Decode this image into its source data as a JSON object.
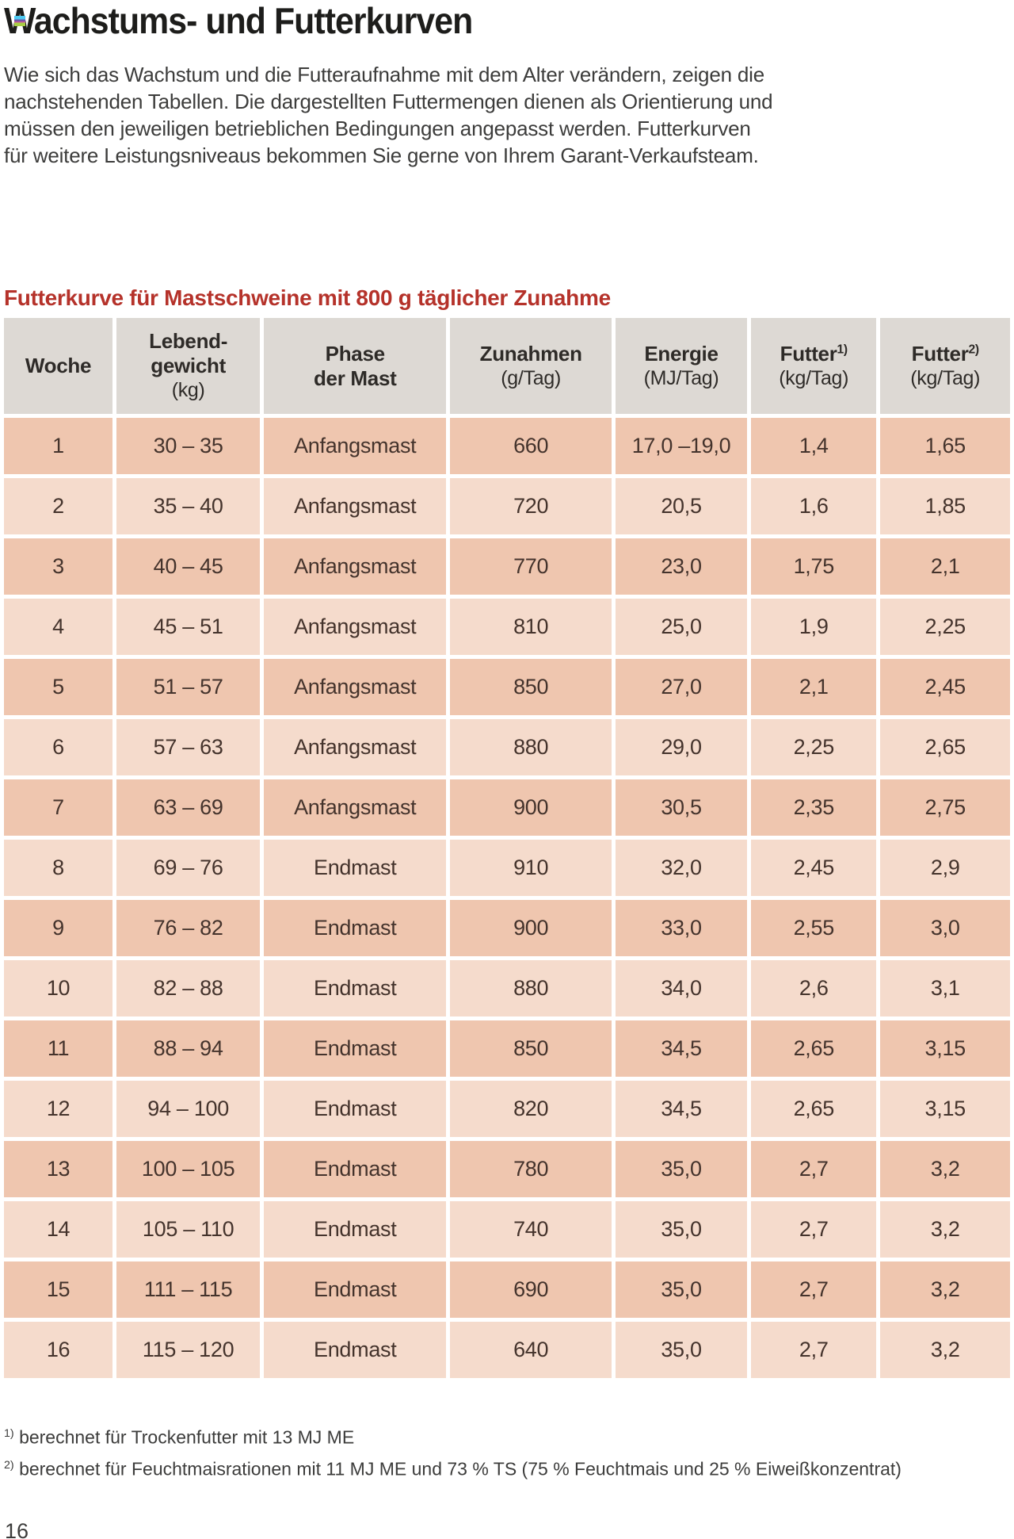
{
  "page": {
    "title": "Wachstums- und Futterkurven",
    "intro_lines": [
      "Wie sich das Wachstum und die Futteraufnahme mit dem Alter verändern, zeigen die",
      "nachstehenden Tabellen. Die dargestellten Futtermengen dienen als Orientierung und",
      "müssen den jeweiligen betrieblichen Bedingungen angepasst werden. Futterkurven",
      "für weitere Leistungsniveaus bekommen Sie gerne von Ihrem Garant-Verkaufsteam."
    ],
    "section_title": "Futterkurve für Mastschweine mit 800 g täglicher Zunahme",
    "page_number": "16"
  },
  "colors": {
    "accent_red": "#b5322a",
    "title_black": "#1d1d1b",
    "header_cell_bg": "#ddd9d4",
    "row_dark_bg": "#efc6af",
    "row_light_bg": "#f5dbcc",
    "cell_text": "#44332c"
  },
  "table": {
    "headers": [
      {
        "l1": "Woche"
      },
      {
        "l1": "Lebend-",
        "l2": "gewicht",
        "unit": "(kg)"
      },
      {
        "l1": "Phase",
        "l2": "der Mast"
      },
      {
        "l1": "Zunahmen",
        "unit": "(g/Tag)"
      },
      {
        "l1": "Energie",
        "unit": "(MJ/Tag)"
      },
      {
        "l1": "Futter",
        "sup": "1)",
        "unit": "(kg/Tag)"
      },
      {
        "l1": "Futter",
        "sup": "2)",
        "unit": "(kg/Tag)"
      }
    ],
    "rows": [
      [
        "1",
        "30 – 35",
        "Anfangsmast",
        "660",
        "17,0 –19,0",
        "1,4",
        "1,65"
      ],
      [
        "2",
        "35 – 40",
        "Anfangsmast",
        "720",
        "20,5",
        "1,6",
        "1,85"
      ],
      [
        "3",
        "40 – 45",
        "Anfangsmast",
        "770",
        "23,0",
        "1,75",
        "2,1"
      ],
      [
        "4",
        "45 – 51",
        "Anfangsmast",
        "810",
        "25,0",
        "1,9",
        "2,25"
      ],
      [
        "5",
        "51 – 57",
        "Anfangsmast",
        "850",
        "27,0",
        "2,1",
        "2,45"
      ],
      [
        "6",
        "57 – 63",
        "Anfangsmast",
        "880",
        "29,0",
        "2,25",
        "2,65"
      ],
      [
        "7",
        "63 – 69",
        "Anfangsmast",
        "900",
        "30,5",
        "2,35",
        "2,75"
      ],
      [
        "8",
        "69 – 76",
        "Endmast",
        "910",
        "32,0",
        "2,45",
        "2,9"
      ],
      [
        "9",
        "76 – 82",
        "Endmast",
        "900",
        "33,0",
        "2,55",
        "3,0"
      ],
      [
        "10",
        "82 – 88",
        "Endmast",
        "880",
        "34,0",
        "2,6",
        "3,1"
      ],
      [
        "11",
        "88 – 94",
        "Endmast",
        "850",
        "34,5",
        "2,65",
        "3,15"
      ],
      [
        "12",
        "94 – 100",
        "Endmast",
        "820",
        "34,5",
        "2,65",
        "3,15"
      ],
      [
        "13",
        "100 – 105",
        "Endmast",
        "780",
        "35,0",
        "2,7",
        "3,2"
      ],
      [
        "14",
        "105 – 110",
        "Endmast",
        "740",
        "35,0",
        "2,7",
        "3,2"
      ],
      [
        "15",
        "111 – 115",
        "Endmast",
        "690",
        "35,0",
        "2,7",
        "3,2"
      ],
      [
        "16",
        "115 – 120",
        "Endmast",
        "640",
        "35,0",
        "2,7",
        "3,2"
      ]
    ]
  },
  "footnotes": [
    {
      "sup": "1)",
      "text": "berechnet für Trockenfutter mit 13 MJ ME"
    },
    {
      "sup": "2)",
      "text": "berechnet für Feuchtmaisrationen mit 11 MJ ME und 73 % TS  (75 % Feuchtmais und 25 % Eiweißkonzentrat)"
    }
  ]
}
